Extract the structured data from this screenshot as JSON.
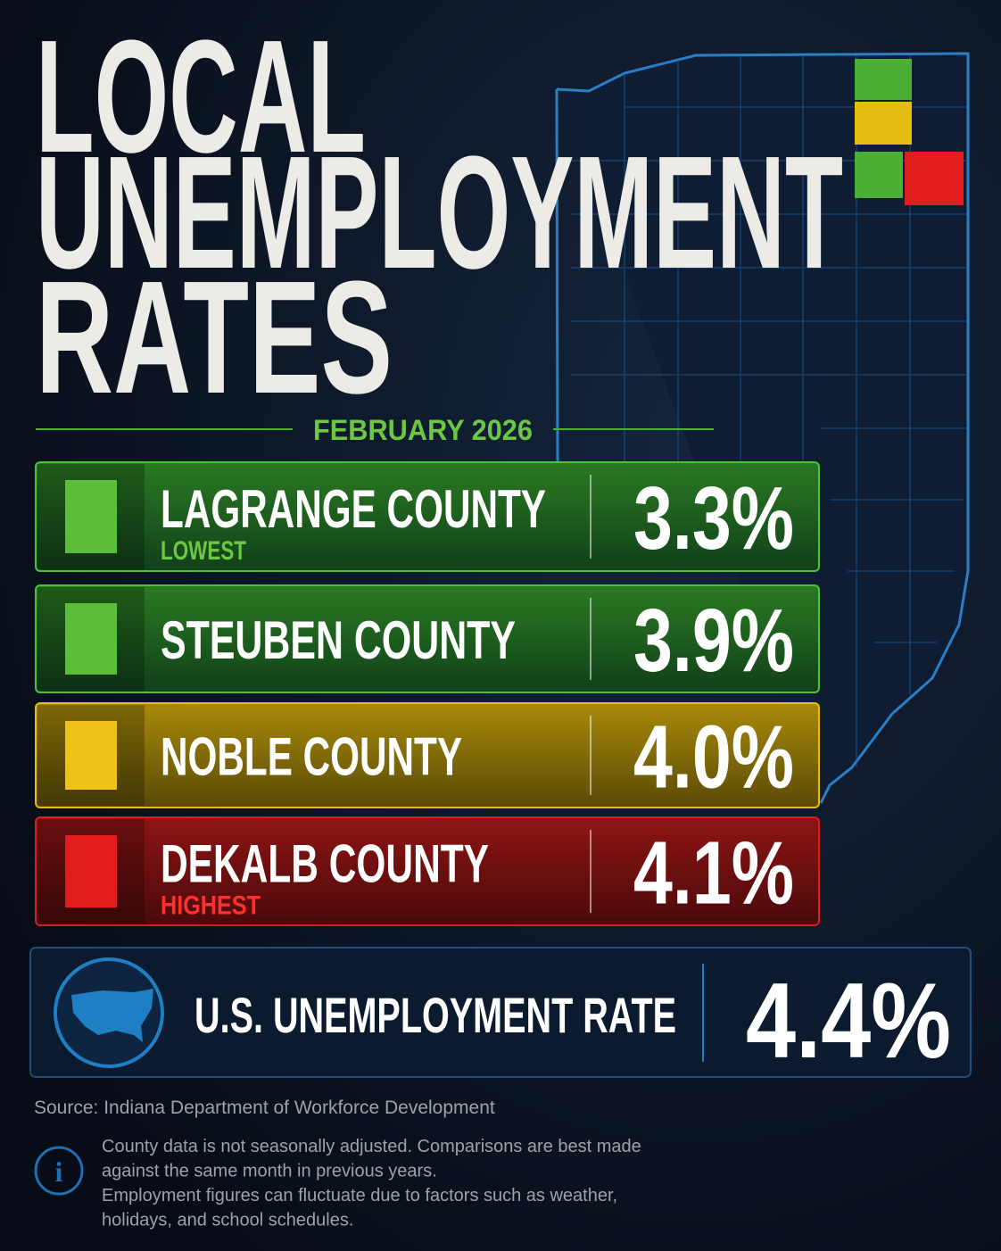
{
  "header": {
    "title_lines": [
      "LOCAL",
      "UNEMPLOYMENT",
      "RATES"
    ],
    "date": "FEBRUARY 2026"
  },
  "counties": [
    {
      "name": "LAGRANGE COUNTY",
      "tag": "LOWEST",
      "rate": "3.3%"
    },
    {
      "name": "STEUBEN COUNTY",
      "rate": "3.9%"
    },
    {
      "name": "NOBLE COUNTY",
      "rate": "4.0%"
    },
    {
      "name": "DEKALB COUNTY",
      "tag": "HIGHEST",
      "rate": "4.1%"
    }
  ],
  "national": {
    "label": "U.S. UNEMPLOYMENT RATE",
    "rate": "4.4%"
  },
  "source": "Source: Indiana Department of Workforce Development",
  "notes": [
    "County data is not seasonally adjusted. Comparisons are best made",
    "against the same month in previous years.",
    "Employment figures can fluctuate due to factors such as weather,",
    "holidays, and school schedules."
  ]
}
